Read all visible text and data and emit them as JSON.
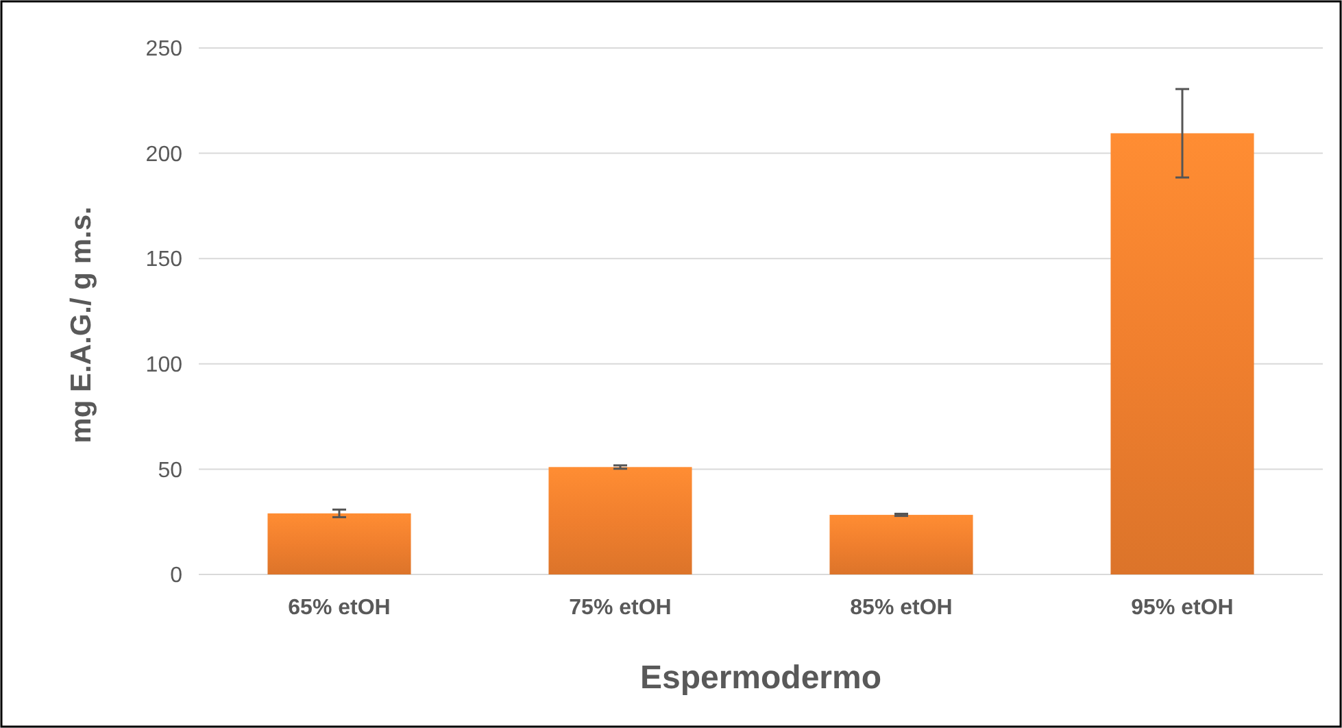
{
  "chart_data": {
    "type": "bar",
    "xlabel": "Espermodermo",
    "ylabel": "mg E.A.G./ g m.s.",
    "categories": [
      "65% etOH",
      "75% etOH",
      "85% etOH",
      "95% etOH"
    ],
    "values": [
      29,
      51,
      28.3,
      209.5
    ],
    "errors": [
      1.8,
      0.8,
      0.5,
      21
    ],
    "color": "#f07f2e",
    "ylim": [
      0,
      250
    ],
    "yticks": [
      0,
      50,
      100,
      150,
      200,
      250
    ],
    "grid": "y"
  }
}
